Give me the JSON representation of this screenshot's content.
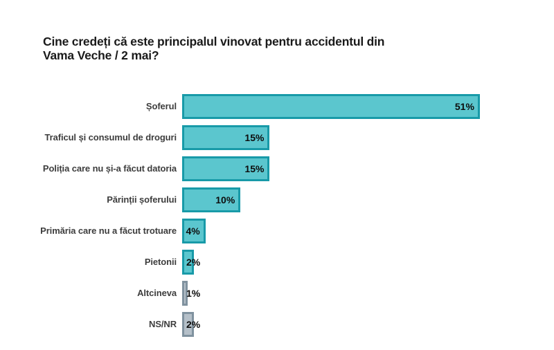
{
  "title": {
    "line1": "Cine credeți că este principalul vinovat pentru accidentul din",
    "line2": "Vama Veche / 2 mai?"
  },
  "chart_data": {
    "type": "bar",
    "orientation": "horizontal",
    "title": "Cine credeți că este principalul vinovat pentru accidentul din Vama Veche / 2 mai?",
    "categories": [
      "Șoferul",
      "Traficul și consumul de droguri",
      "Poliția care nu și-a făcut datoria",
      "Părinții șoferului",
      "Primăria care nu a făcut trotuare",
      "Pietonii",
      "Altcineva",
      "NS/NR"
    ],
    "values": [
      51,
      15,
      15,
      10,
      4,
      2,
      1,
      2
    ],
    "value_labels": [
      "51%",
      "15%",
      "15%",
      "10%",
      "4%",
      "2%",
      "1%",
      "2%"
    ],
    "bar_styles": [
      "teal",
      "teal",
      "teal",
      "teal",
      "teal",
      "teal",
      "gray",
      "gray"
    ],
    "colors": {
      "teal_fill": "#5bc6ce",
      "teal_border": "#189aa8",
      "gray_fill": "#b5c0c9",
      "gray_border": "#80929f"
    },
    "xlim": [
      0,
      60
    ],
    "grid": false,
    "legend": null,
    "value_label_position": "inside-right, overlapping-left when bar is narrow"
  }
}
